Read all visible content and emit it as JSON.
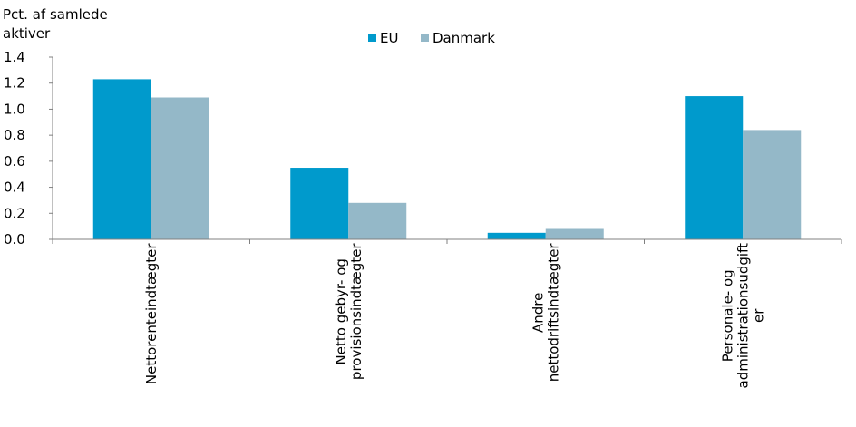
{
  "chart_data": {
    "type": "bar",
    "ylabel_lines": [
      "Pct. af samlede",
      "aktiver"
    ],
    "categories": [
      [
        "Nettorenteindtægter"
      ],
      [
        "Netto gebyr- og",
        "provisionsindtægter"
      ],
      [
        "Andre",
        "nettodriftsindtægter"
      ],
      [
        "Personale- og",
        "administrationsudgift",
        "er"
      ]
    ],
    "series": [
      {
        "name": "EU",
        "color": "#009ACC",
        "values": [
          1.23,
          0.55,
          0.05,
          1.1
        ]
      },
      {
        "name": "Danmark",
        "color": "#94B8C8",
        "values": [
          1.09,
          0.28,
          0.08,
          0.84
        ]
      }
    ],
    "ylim": [
      0,
      1.4
    ],
    "yticks": [
      "0.0",
      "0.2",
      "0.4",
      "0.6",
      "0.8",
      "1.0",
      "1.2",
      "1.4"
    ],
    "legend_position": "top-center",
    "grid": false
  }
}
